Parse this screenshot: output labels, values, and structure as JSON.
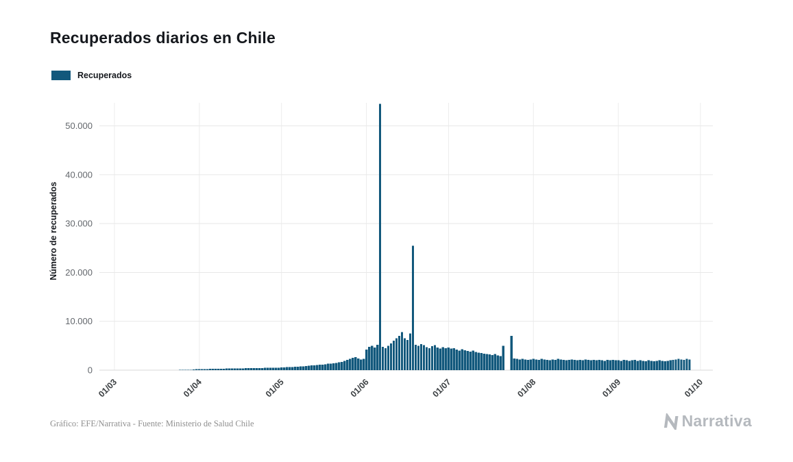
{
  "page": {
    "title": "Recuperados diarios en Chile",
    "background": "#ffffff"
  },
  "legend": {
    "label": "Recuperados",
    "color": "#12587c"
  },
  "y_axis": {
    "label": "Número de recuperados",
    "ticks": [
      "0",
      "10.000",
      "20.000",
      "30.000",
      "40.000",
      "50.000"
    ],
    "tick_values": [
      0,
      10000,
      20000,
      30000,
      40000,
      50000
    ]
  },
  "x_axis": {
    "ticks": [
      "01/03",
      "01/04",
      "01/05",
      "01/06",
      "01/07",
      "01/08",
      "01/09",
      "01/10"
    ]
  },
  "footer": {
    "credit": "Gráfico: EFE/Narrativa - Fuente: Ministerio de Salud Chile",
    "brand": "Narrativa"
  },
  "chart_data": {
    "type": "bar",
    "title": "Recuperados diarios en Chile",
    "ylabel": "Número de recuperados",
    "series_name": "Recuperados",
    "color": "#12587c",
    "grid": "horizontal-and-vertical-light",
    "legend_position": "top-left",
    "ylim": [
      0,
      55000
    ],
    "x_tick_labels": [
      "01/03",
      "01/04",
      "01/05",
      "01/06",
      "01/07",
      "01/08",
      "01/09",
      "01/10"
    ],
    "y_tick_labels": [
      "0",
      "10.000",
      "20.000",
      "30.000",
      "40.000",
      "50.000"
    ],
    "days_per_month": [
      31,
      30,
      31,
      30,
      31,
      31,
      30
    ],
    "start_label": "01/03",
    "values": [
      0,
      0,
      0,
      0,
      0,
      0,
      0,
      0,
      0,
      0,
      0,
      0,
      0,
      2,
      3,
      5,
      6,
      8,
      10,
      12,
      15,
      20,
      25,
      30,
      40,
      50,
      60,
      80,
      100,
      150,
      200,
      180,
      200,
      220,
      230,
      250,
      260,
      280,
      290,
      300,
      310,
      320,
      330,
      340,
      350,
      360,
      370,
      380,
      390,
      400,
      410,
      420,
      430,
      440,
      450,
      460,
      470,
      480,
      490,
      500,
      520,
      550,
      580,
      600,
      620,
      650,
      700,
      730,
      760,
      800,
      850,
      900,
      950,
      1000,
      1050,
      1100,
      1150,
      1200,
      1300,
      1350,
      1400,
      1500,
      1600,
      1700,
      1900,
      2100,
      2300,
      2500,
      2700,
      2400,
      2200,
      2300,
      4200,
      4800,
      5000,
      4600,
      5200,
      54500,
      4800,
      4500,
      5000,
      5500,
      6000,
      6500,
      7000,
      7800,
      6500,
      6200,
      7500,
      25500,
      5200,
      5000,
      5300,
      5100,
      4700,
      4500,
      4900,
      5100,
      4600,
      4400,
      4700,
      4500,
      4600,
      4400,
      4500,
      4200,
      4000,
      4300,
      4100,
      3900,
      3800,
      4000,
      3700,
      3600,
      3500,
      3400,
      3300,
      3200,
      3100,
      3300,
      3000,
      2900,
      5000,
      0,
      0,
      7000,
      2400,
      2300,
      2200,
      2300,
      2200,
      2100,
      2200,
      2300,
      2200,
      2100,
      2300,
      2200,
      2100,
      2000,
      2200,
      2100,
      2300,
      2200,
      2100,
      2000,
      2100,
      2200,
      2100,
      2000,
      2100,
      2000,
      2200,
      2100,
      2000,
      2100,
      2000,
      2100,
      2000,
      1900,
      2100,
      2000,
      2100,
      2000,
      2000,
      1900,
      2100,
      2000,
      1900,
      2000,
      2100,
      1900,
      2000,
      1900,
      1800,
      2000,
      1900,
      1800,
      1900,
      2000,
      1900,
      1800,
      1900,
      2000,
      2100,
      2200,
      2300,
      2200,
      2100,
      2300,
      2200
    ]
  }
}
